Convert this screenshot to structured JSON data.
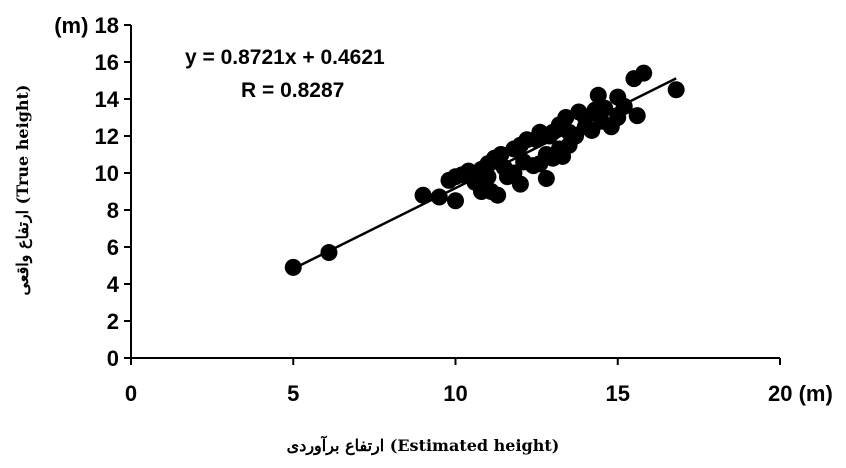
{
  "chart_data": {
    "type": "scatter",
    "xlabel": "ارتفاع برآوردی (Estimated height)",
    "ylabel": "ارتفاع واقعی (True height)",
    "x_unit": "(m)",
    "y_unit": "(m)",
    "xlim": [
      0,
      20
    ],
    "ylim": [
      0,
      18
    ],
    "x_ticks": [
      0,
      5,
      10,
      15,
      20
    ],
    "y_ticks": [
      0,
      2,
      4,
      6,
      8,
      10,
      12,
      14,
      16,
      18
    ],
    "x_tick_labels": [
      "0",
      "5",
      "10",
      "15",
      "20 (m)"
    ],
    "y_tick_labels": [
      "0",
      "2",
      "4",
      "6",
      "8",
      "10",
      "12",
      "14",
      "16",
      "(m) 18"
    ],
    "grid": false,
    "annotations": {
      "equation": "y = 0.8721x + 0.4621",
      "r_value": "R  = 0.8287"
    },
    "trendline": {
      "slope": 0.8721,
      "intercept": 0.4621,
      "x_range": [
        5.0,
        16.8
      ]
    },
    "points": [
      [
        5.0,
        4.9
      ],
      [
        6.1,
        5.7
      ],
      [
        9.0,
        8.8
      ],
      [
        9.5,
        8.7
      ],
      [
        9.8,
        9.6
      ],
      [
        10.0,
        8.5
      ],
      [
        10.0,
        9.8
      ],
      [
        10.2,
        9.9
      ],
      [
        10.4,
        10.1
      ],
      [
        10.6,
        9.5
      ],
      [
        10.8,
        10.2
      ],
      [
        10.8,
        9.0
      ],
      [
        11.0,
        10.5
      ],
      [
        11.0,
        9.8
      ],
      [
        11.1,
        9.0
      ],
      [
        11.2,
        10.8
      ],
      [
        11.3,
        8.8
      ],
      [
        11.4,
        11.0
      ],
      [
        11.5,
        10.3
      ],
      [
        11.6,
        9.8
      ],
      [
        11.8,
        10.0
      ],
      [
        11.8,
        11.3
      ],
      [
        12.0,
        9.4
      ],
      [
        12.0,
        11.5
      ],
      [
        12.1,
        10.6
      ],
      [
        12.2,
        11.8
      ],
      [
        12.4,
        10.4
      ],
      [
        12.5,
        11.8
      ],
      [
        12.6,
        12.2
      ],
      [
        12.6,
        10.5
      ],
      [
        12.8,
        9.7
      ],
      [
        12.8,
        11.0
      ],
      [
        12.9,
        12.0
      ],
      [
        13.0,
        10.8
      ],
      [
        13.0,
        12.2
      ],
      [
        13.2,
        11.3
      ],
      [
        13.2,
        12.6
      ],
      [
        13.3,
        10.9
      ],
      [
        13.4,
        13.0
      ],
      [
        13.5,
        11.5
      ],
      [
        13.5,
        12.2
      ],
      [
        13.7,
        12.0
      ],
      [
        13.8,
        13.3
      ],
      [
        14.0,
        12.5
      ],
      [
        14.0,
        13.0
      ],
      [
        14.2,
        12.3
      ],
      [
        14.3,
        13.4
      ],
      [
        14.4,
        14.2
      ],
      [
        14.5,
        12.8
      ],
      [
        14.6,
        13.5
      ],
      [
        14.8,
        12.5
      ],
      [
        15.0,
        13.0
      ],
      [
        15.0,
        14.1
      ],
      [
        15.2,
        13.6
      ],
      [
        15.5,
        15.1
      ],
      [
        15.6,
        13.1
      ],
      [
        15.8,
        15.4
      ],
      [
        16.8,
        14.5
      ]
    ]
  }
}
